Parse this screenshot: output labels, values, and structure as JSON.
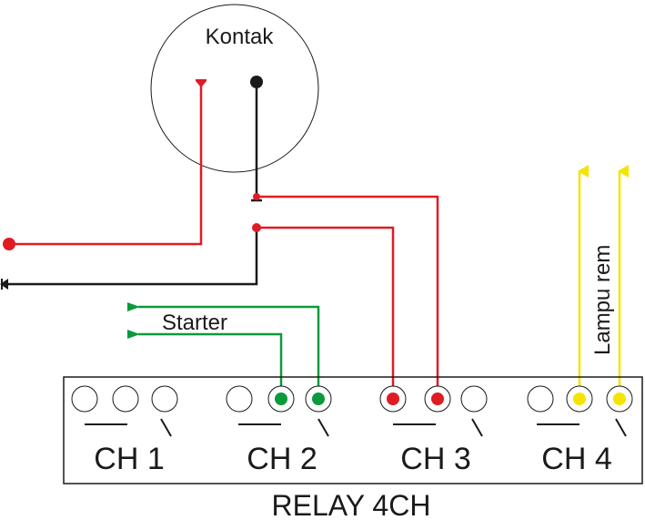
{
  "diagram": {
    "switch_label": "Kontak",
    "starter_label": "Starter",
    "brake_lamp_label": "Lampu rem",
    "relay_label": "RELAY 4CH",
    "channels": [
      "CH 1",
      "CH 2",
      "CH 3",
      "CH 4"
    ]
  },
  "colors": {
    "red": "#e01b24",
    "black": "#1a1a1a",
    "green": "#0a9a3c",
    "yellow": "#f5e400"
  }
}
